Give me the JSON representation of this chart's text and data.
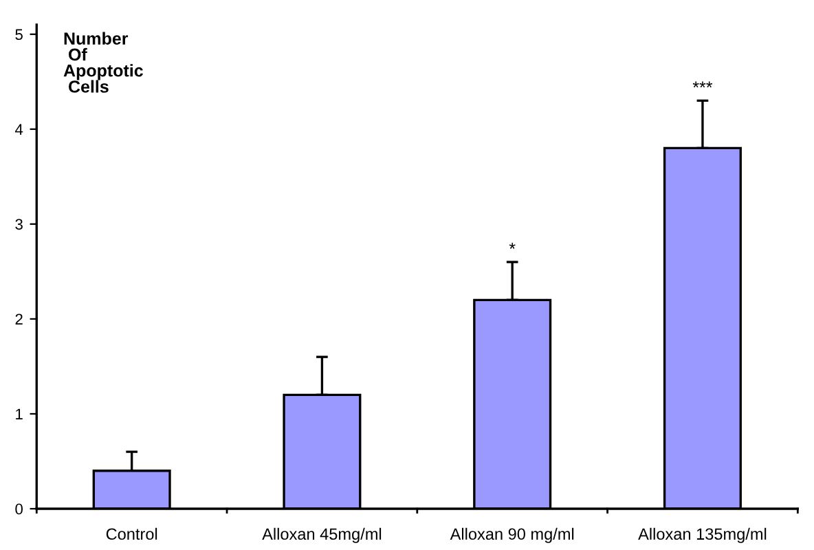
{
  "chart_data": {
    "type": "bar",
    "ylabel": "Number\n Of\nApoptotic\n Cells",
    "categories": [
      "Control",
      "Alloxan 45mg/ml",
      "Alloxan 90 mg/ml",
      "Alloxan 135mg/ml"
    ],
    "values": [
      0.4,
      1.2,
      2.2,
      3.8
    ],
    "errors": [
      [
        0.4,
        0.6
      ],
      [
        1.2,
        1.6
      ],
      [
        2.2,
        2.6
      ],
      [
        3.8,
        4.3
      ]
    ],
    "color": "#9999ff",
    "ylim": [
      0,
      5.1
    ],
    "yticks": [
      0,
      1,
      2,
      3,
      4,
      5
    ],
    "grid": false,
    "annotations": [
      "*",
      "***"
    ]
  }
}
